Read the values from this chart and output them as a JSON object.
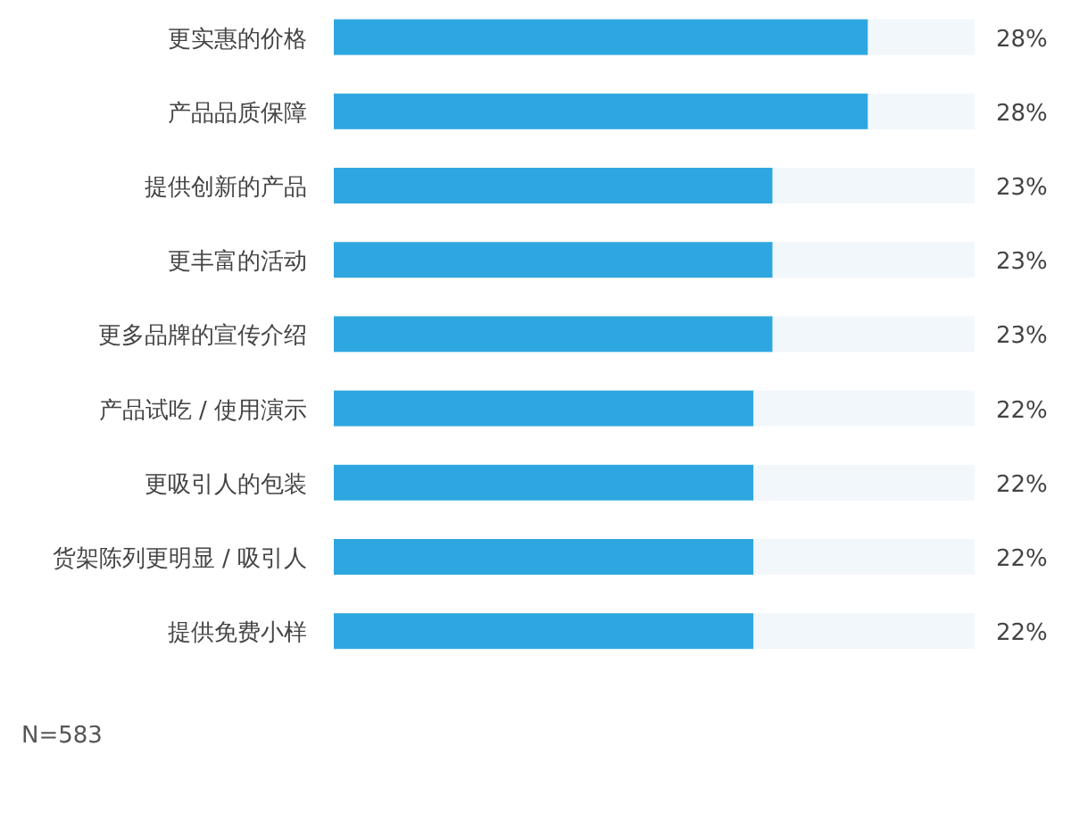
{
  "chart_data": {
    "type": "bar",
    "orientation": "horizontal",
    "categories": [
      "更实惠的价格",
      "产品品质保障",
      "提供创新的产品",
      "更丰富的活动",
      "更多品牌的宣传介绍",
      "产品试吃 / 使用演示",
      "更吸引人的包装",
      "货架陈列更明显 / 吸引人",
      "提供免费小样"
    ],
    "values": [
      28,
      28,
      23,
      23,
      23,
      22,
      22,
      22,
      22
    ],
    "color": "#2ea7e0",
    "data_labels": true,
    "value_labels": [
      "28%",
      "28%",
      "23%",
      "23%",
      "23%",
      "22%",
      "22%",
      "22%",
      "22%"
    ],
    "annotations": [
      "N=583"
    ]
  }
}
